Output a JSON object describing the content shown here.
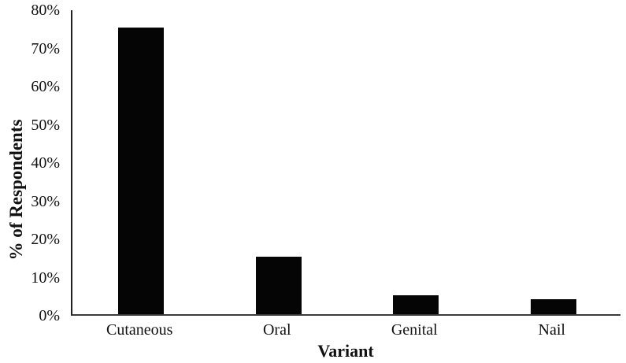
{
  "figure": {
    "background": "#ffffff",
    "bar_color": "#050505",
    "axis_color": "#2a2a2a",
    "text_color": "#111111"
  },
  "chart_data": {
    "type": "bar",
    "title": "",
    "xlabel": "Variant",
    "ylabel": "% of Respondents",
    "categories": [
      "Cutaneous",
      "Oral",
      "Genital",
      "Nail"
    ],
    "values": [
      75,
      15,
      5,
      4
    ],
    "ylim": [
      0,
      80
    ],
    "ytick_values": [
      0,
      10,
      20,
      30,
      40,
      50,
      60,
      70,
      80
    ],
    "ytick_labels": [
      "0%",
      "10%",
      "20%",
      "30%",
      "40%",
      "50%",
      "60%",
      "70%",
      "80%"
    ],
    "grid": "off",
    "legend": "none",
    "bar_color": "#050505"
  }
}
